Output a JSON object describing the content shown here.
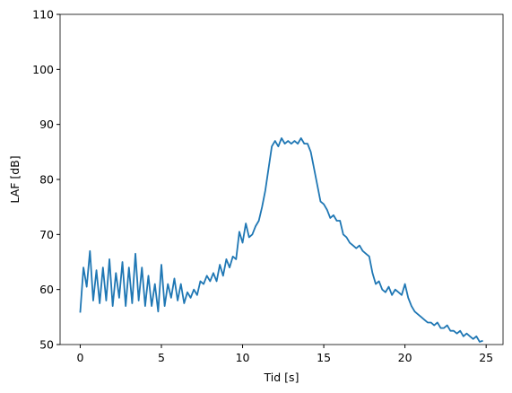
{
  "chart_data": {
    "type": "line",
    "xlabel": "Tid [s]",
    "ylabel": "LAF [dB]",
    "x": [
      0,
      0.2,
      0.4,
      0.6,
      0.8,
      1.0,
      1.2,
      1.4,
      1.6,
      1.8,
      2.0,
      2.2,
      2.4,
      2.6,
      2.8,
      3.0,
      3.2,
      3.4,
      3.6,
      3.8,
      4.0,
      4.2,
      4.4,
      4.6,
      4.8,
      5.0,
      5.2,
      5.4,
      5.6,
      5.8,
      6.0,
      6.2,
      6.4,
      6.6,
      6.8,
      7.0,
      7.2,
      7.4,
      7.6,
      7.8,
      8.0,
      8.2,
      8.4,
      8.6,
      8.8,
      9.0,
      9.2,
      9.4,
      9.6,
      9.8,
      10.0,
      10.2,
      10.4,
      10.6,
      10.8,
      11.0,
      11.2,
      11.4,
      11.6,
      11.8,
      12.0,
      12.2,
      12.4,
      12.6,
      12.8,
      13.0,
      13.2,
      13.4,
      13.6,
      13.8,
      14.0,
      14.2,
      14.4,
      14.6,
      14.8,
      15.0,
      15.2,
      15.4,
      15.6,
      15.8,
      16.0,
      16.2,
      16.4,
      16.6,
      16.8,
      17.0,
      17.2,
      17.4,
      17.6,
      17.8,
      18.0,
      18.2,
      18.4,
      18.6,
      18.8,
      19.0,
      19.2,
      19.4,
      19.6,
      19.8,
      20.0,
      20.2,
      20.4,
      20.6,
      20.8,
      21.0,
      21.2,
      21.4,
      21.6,
      21.8,
      22.0,
      22.2,
      22.4,
      22.6,
      22.8,
      23.0,
      23.2,
      23.4,
      23.6,
      23.8,
      24.0,
      24.2,
      24.4,
      24.6,
      24.8
    ],
    "series": [
      {
        "color": "#1f77b4",
        "values": [
          55.8,
          64.0,
          60.5,
          67.0,
          58.0,
          63.5,
          57.5,
          64.0,
          58.0,
          65.5,
          57.0,
          63.0,
          58.5,
          65.0,
          57.0,
          64.0,
          57.5,
          66.5,
          58.0,
          64.0,
          57.0,
          62.5,
          57.0,
          61.0,
          56.0,
          64.5,
          57.0,
          61.0,
          58.5,
          62.0,
          58.0,
          61.0,
          57.5,
          59.5,
          58.5,
          60.0,
          59.0,
          61.5,
          61.0,
          62.5,
          61.5,
          63.0,
          61.5,
          64.5,
          62.5,
          65.5,
          64.0,
          66.0,
          65.5,
          70.5,
          68.5,
          72.0,
          69.5,
          70.0,
          71.5,
          72.5,
          75.0,
          78.0,
          82.0,
          86.0,
          87.0,
          86.0,
          87.5,
          86.5,
          87.0,
          86.5,
          87.0,
          86.5,
          87.5,
          86.5,
          86.5,
          85.0,
          82.0,
          79.0,
          76.0,
          75.5,
          74.5,
          73.0,
          73.5,
          72.5,
          72.5,
          70.0,
          69.5,
          68.5,
          68.0,
          67.5,
          68.0,
          67.0,
          66.5,
          66.0,
          63.0,
          61.0,
          61.5,
          60.0,
          59.5,
          60.5,
          59.0,
          60.0,
          59.5,
          59.0,
          61.0,
          58.5,
          57.0,
          56.0,
          55.5,
          55.0,
          54.5,
          54.0,
          54.0,
          53.5,
          54.0,
          53.0,
          53.0,
          53.5,
          52.5,
          52.5,
          52.0,
          52.5,
          51.5,
          52.0,
          51.5,
          51.0,
          51.5,
          50.5,
          50.7
        ]
      }
    ],
    "xlim": [
      -1.24,
      26.04
    ],
    "ylim": [
      50,
      110
    ],
    "xticks": [
      0,
      5,
      10,
      15,
      20,
      25
    ],
    "yticks": [
      50,
      60,
      70,
      80,
      90,
      100,
      110
    ]
  }
}
